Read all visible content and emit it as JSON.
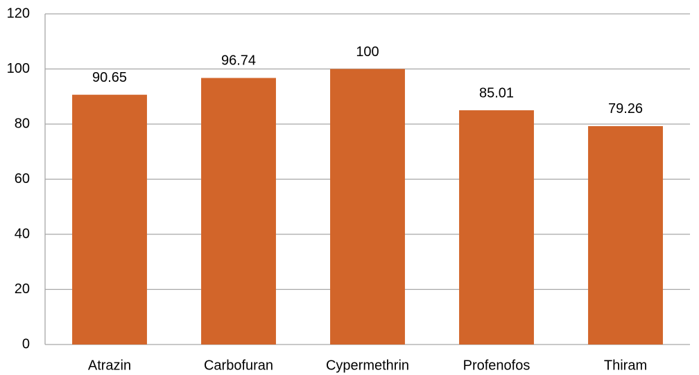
{
  "chart_data": {
    "type": "bar",
    "categories": [
      "Atrazin",
      "Carbofuran",
      "Cypermethrin",
      "Profenofos",
      "Thiram"
    ],
    "values": [
      90.65,
      96.74,
      100,
      85.01,
      79.26
    ],
    "color": "#d2652a",
    "ylim": [
      0,
      120
    ],
    "yticks": [
      0,
      20,
      40,
      60,
      80,
      100,
      120
    ],
    "grid": true
  }
}
